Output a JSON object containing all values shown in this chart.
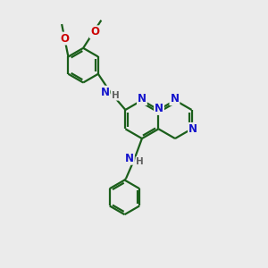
{
  "bg_color": "#ebebeb",
  "bond_color": "#1a5e1a",
  "nitrogen_color": "#1414cc",
  "oxygen_color": "#cc0000",
  "gray_color": "#606060",
  "line_width": 1.6,
  "dg": 0.045,
  "fig_w": 3.0,
  "fig_h": 3.0,
  "dpi": 100,
  "xlim": [
    0,
    10
  ],
  "ylim": [
    0,
    10
  ]
}
